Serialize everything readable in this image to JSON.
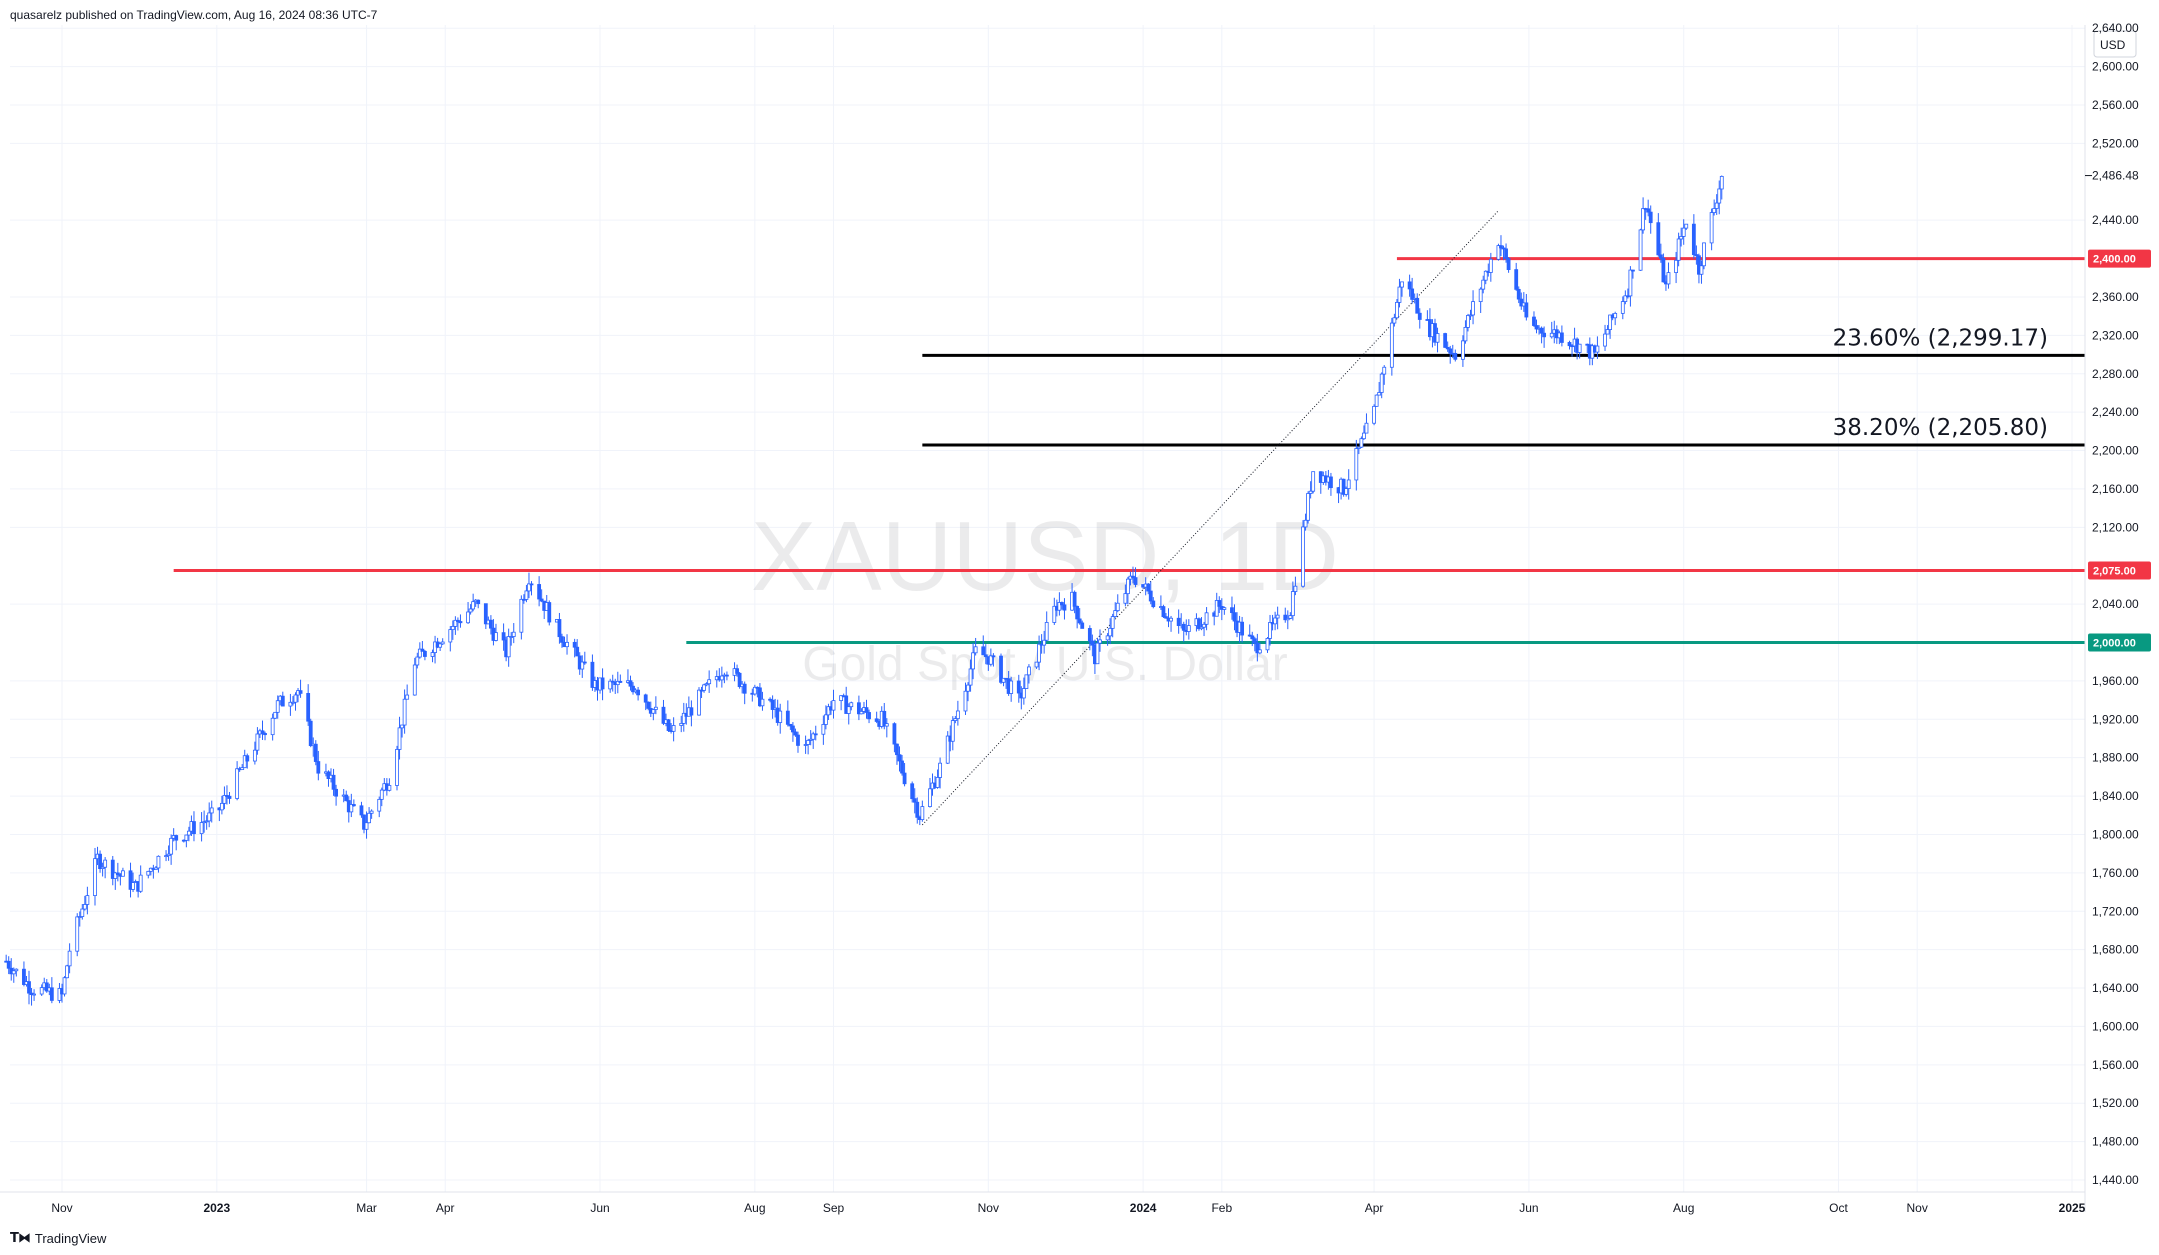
{
  "header": {
    "published_text": "quasarelz published on TradingView.com, Aug 16, 2024 08:36 UTC-7"
  },
  "footer": {
    "brand_logo_icon": "tradingview-logo-icon",
    "brand_text": "TradingView"
  },
  "watermark": {
    "symbol": "XAUUSD, 1D",
    "description": "Gold Spot / U.S. Dollar"
  },
  "colors": {
    "candle": "#2962ff",
    "resistance_red": "#f23645",
    "support_green": "#089981",
    "fib_line": "#000000",
    "last_price_bg": "#ffffff"
  },
  "chart_data": {
    "type": "candlestick",
    "currency_label": "USD",
    "ylim": [
      1420,
      2680
    ],
    "y_ticks": [
      "2,640.00",
      "2,600.00",
      "2,560.00",
      "2,520.00",
      "2,440.00",
      "2,360.00",
      "2,320.00",
      "2,280.00",
      "2,240.00",
      "2,200.00",
      "2,160.00",
      "2,120.00",
      "2,040.00",
      "1,960.00",
      "1,920.00",
      "1,880.00",
      "1,840.00",
      "1,800.00",
      "1,760.00",
      "1,720.00",
      "1,680.00",
      "1,640.00",
      "1,600.00",
      "1,560.00",
      "1,520.00",
      "1,480.00",
      "1,440.00"
    ],
    "x_ticks": [
      {
        "label": "Nov",
        "date": "2022-11-01",
        "bold": false
      },
      {
        "label": "2023",
        "date": "2023-01-01",
        "bold": true
      },
      {
        "label": "Mar",
        "date": "2023-03-01",
        "bold": false
      },
      {
        "label": "Apr",
        "date": "2023-04-01",
        "bold": false
      },
      {
        "label": "Jun",
        "date": "2023-06-01",
        "bold": false
      },
      {
        "label": "Aug",
        "date": "2023-08-01",
        "bold": false
      },
      {
        "label": "Sep",
        "date": "2023-09-01",
        "bold": false
      },
      {
        "label": "Nov",
        "date": "2023-11-01",
        "bold": false
      },
      {
        "label": "2024",
        "date": "2024-01-01",
        "bold": true
      },
      {
        "label": "Feb",
        "date": "2024-02-01",
        "bold": false
      },
      {
        "label": "Apr",
        "date": "2024-04-01",
        "bold": false
      },
      {
        "label": "Jun",
        "date": "2024-06-01",
        "bold": false
      },
      {
        "label": "Aug",
        "date": "2024-08-01",
        "bold": false
      },
      {
        "label": "Oct",
        "date": "2024-10-01",
        "bold": false
      },
      {
        "label": "Nov",
        "date": "2024-11-01",
        "bold": false
      },
      {
        "label": "2025",
        "date": "2025-01-01",
        "bold": true
      }
    ],
    "last_price": {
      "value": 2486.48,
      "label": "2,486.48"
    },
    "price_path": [
      {
        "date": "2022-10-10",
        "price": 1668
      },
      {
        "date": "2022-10-20",
        "price": 1640
      },
      {
        "date": "2022-11-01",
        "price": 1632
      },
      {
        "date": "2022-11-04",
        "price": 1680
      },
      {
        "date": "2022-11-15",
        "price": 1775
      },
      {
        "date": "2022-11-30",
        "price": 1745
      },
      {
        "date": "2022-12-15",
        "price": 1795
      },
      {
        "date": "2023-01-01",
        "price": 1822
      },
      {
        "date": "2023-01-25",
        "price": 1935
      },
      {
        "date": "2023-02-02",
        "price": 1950
      },
      {
        "date": "2023-02-10",
        "price": 1870
      },
      {
        "date": "2023-02-28",
        "price": 1810
      },
      {
        "date": "2023-03-10",
        "price": 1860
      },
      {
        "date": "2023-03-20",
        "price": 1980
      },
      {
        "date": "2023-04-13",
        "price": 2040
      },
      {
        "date": "2023-04-25",
        "price": 1990
      },
      {
        "date": "2023-05-04",
        "price": 2070
      },
      {
        "date": "2023-05-15",
        "price": 2015
      },
      {
        "date": "2023-05-30",
        "price": 1955
      },
      {
        "date": "2023-06-15",
        "price": 1955
      },
      {
        "date": "2023-06-29",
        "price": 1905
      },
      {
        "date": "2023-07-20",
        "price": 1975
      },
      {
        "date": "2023-08-08",
        "price": 1930
      },
      {
        "date": "2023-08-21",
        "price": 1890
      },
      {
        "date": "2023-09-01",
        "price": 1940
      },
      {
        "date": "2023-09-20",
        "price": 1920
      },
      {
        "date": "2023-10-05",
        "price": 1820
      },
      {
        "date": "2023-10-13",
        "price": 1870
      },
      {
        "date": "2023-10-27",
        "price": 1990
      },
      {
        "date": "2023-11-01",
        "price": 1985
      },
      {
        "date": "2023-11-13",
        "price": 1940
      },
      {
        "date": "2023-11-28",
        "price": 2040
      },
      {
        "date": "2023-12-04",
        "price": 2045
      },
      {
        "date": "2023-12-13",
        "price": 1985
      },
      {
        "date": "2023-12-28",
        "price": 2070
      },
      {
        "date": "2024-01-17",
        "price": 2010
      },
      {
        "date": "2024-02-01",
        "price": 2040
      },
      {
        "date": "2024-02-14",
        "price": 1995
      },
      {
        "date": "2024-02-28",
        "price": 2035
      },
      {
        "date": "2024-03-08",
        "price": 2180
      },
      {
        "date": "2024-03-20",
        "price": 2160
      },
      {
        "date": "2024-04-01",
        "price": 2240
      },
      {
        "date": "2024-04-12",
        "price": 2380
      },
      {
        "date": "2024-04-22",
        "price": 2330
      },
      {
        "date": "2024-05-03",
        "price": 2300
      },
      {
        "date": "2024-05-20",
        "price": 2420
      },
      {
        "date": "2024-06-01",
        "price": 2330
      },
      {
        "date": "2024-06-14",
        "price": 2320
      },
      {
        "date": "2024-06-27",
        "price": 2300
      },
      {
        "date": "2024-07-10",
        "price": 2370
      },
      {
        "date": "2024-07-17",
        "price": 2460
      },
      {
        "date": "2024-07-25",
        "price": 2370
      },
      {
        "date": "2024-08-02",
        "price": 2440
      },
      {
        "date": "2024-08-07",
        "price": 2390
      },
      {
        "date": "2024-08-16",
        "price": 2486
      }
    ],
    "levels": [
      {
        "name": "resistance-2400",
        "price": 2400,
        "color": "#f23645",
        "from": "2024-04-10",
        "badge": "2,400.00"
      },
      {
        "name": "resistance-2075",
        "price": 2075,
        "color": "#f23645",
        "from": "2022-12-15",
        "badge": "2,075.00"
      },
      {
        "name": "support-2000",
        "price": 2000,
        "color": "#089981",
        "from": "2023-07-05",
        "badge": "2,000.00"
      },
      {
        "name": "fib-23.6",
        "price": 2299.17,
        "color": "#000000",
        "from": "2023-10-06",
        "label": "23.60% (2,299.17)"
      },
      {
        "name": "fib-38.2",
        "price": 2205.8,
        "color": "#000000",
        "from": "2023-10-06",
        "label": "38.20% (2,205.80)"
      }
    ],
    "trend_line": {
      "from": {
        "date": "2023-10-06",
        "price": 1810
      },
      "to": {
        "date": "2024-05-20",
        "price": 2450
      }
    }
  }
}
